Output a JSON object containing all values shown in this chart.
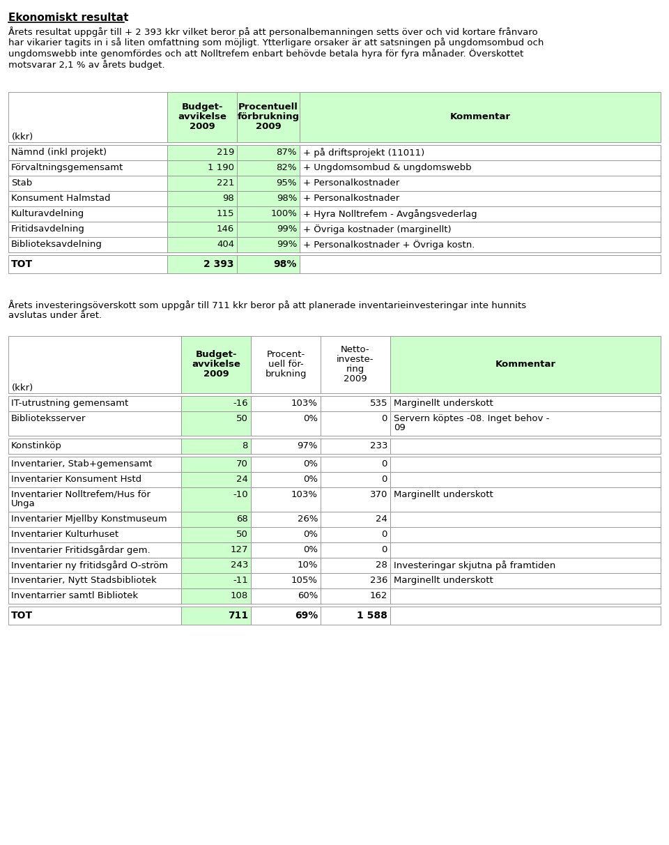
{
  "title": "Ekonomiskt resultat",
  "intro_text": "Årets resultat uppgår till + 2 393 kkr vilket beror på att personalbemanningen setts över och vid kortare frånvaro har vikarier tagits in i så liten omfattning som möjligt. Ytterligare orsaker är att satsningen på ungdomsombud och ungdomswebb inte genomfördes och att Nolltrefem enbart behövde betala hyra för fyra månader. Överskottet motsvarar 2,1 % av årets budget.",
  "intro_lines": [
    "Årets resultat uppgår till + 2 393 kkr vilket beror på att personalbemanningen setts över och vid kortare frånvaro",
    "har vikarier tagits in i så liten omfattning som möjligt. Ytterligare orsaker är att satsningen på ungdomsombud och",
    "ungdomswebb inte genomfördes och att Nolltrefem enbart behövde betala hyra för fyra månader. Överskottet",
    "motsvarar 2,1 % av årets budget."
  ],
  "invest_lines": [
    "Årets investeringsöverskott som uppgår till 711 kkr beror på att planerade inventarieinvesteringar inte hunnits",
    "avslutas under året."
  ],
  "table1_header": [
    "Budget-\navvikelse\n2009",
    "Procentuell\nförbrukning\n2009",
    "Kommentar"
  ],
  "table1_kkr": "(kkr)",
  "table1_rows": [
    [
      "Nämnd (inkl projekt)",
      "219",
      "87%",
      "+ på driftsprojekt (11011)"
    ],
    [
      "Förvaltningsgemensamt",
      "1 190",
      "82%",
      "+ Ungdomsombud & ungdomswebb"
    ],
    [
      "Stab",
      "221",
      "95%",
      "+ Personalkostnader"
    ],
    [
      "Konsument Halmstad",
      "98",
      "98%",
      "+ Personalkostnader"
    ],
    [
      "Kulturavdelning",
      "115",
      "100%",
      "+ Hyra Nolltrefem - Avgångsvederlag"
    ],
    [
      "Fritidsavdelning",
      "146",
      "99%",
      "+ Övriga kostnader (marginellt)"
    ],
    [
      "Biblioteksavdelning",
      "404",
      "99%",
      "+ Personalkostnader + Övriga kostn."
    ]
  ],
  "table1_tot": [
    "TOT",
    "2 393",
    "98%",
    ""
  ],
  "table2_header": [
    "Budget-\navvikelse\n2009",
    "Procent-\nuell för-\nbrukning",
    "Netto-\ninveste-\nring\n2009",
    "Kommentar"
  ],
  "table2_kkr": "(kkr)",
  "table2_groups": [
    [
      [
        "IT-utrustning gemensamt",
        "-16",
        "103%",
        "535",
        "Marginellt underskott",
        false
      ],
      [
        "Biblioteksserver",
        "50",
        "0%",
        "0",
        "Servern köptes -08. Inget behov -\n09",
        true
      ]
    ],
    [
      [
        "Konstinköp",
        "8",
        "97%",
        "233",
        "",
        false
      ]
    ],
    [
      [
        "Inventarier, Stab+gemensamt",
        "70",
        "0%",
        "0",
        "",
        false
      ],
      [
        "Inventarier Konsument Hstd",
        "24",
        "0%",
        "0",
        "",
        false
      ],
      [
        "Inventarier Nolltrefem/Hus för\nUnga",
        "-10",
        "103%",
        "370",
        "Marginellt underskott",
        true
      ],
      [
        "Inventarier Mjellby Konstmuseum",
        "68",
        "26%",
        "24",
        "",
        false
      ],
      [
        "Inventarier Kulturhuset",
        "50",
        "0%",
        "0",
        "",
        false
      ],
      [
        "Inventarier Fritidsgårdar gem.",
        "127",
        "0%",
        "0",
        "",
        false
      ],
      [
        "Inventarier ny fritidsgård O-ström",
        "243",
        "10%",
        "28",
        "Investeringar skjutna på framtiden",
        false
      ],
      [
        "Inventarier, Nytt Stadsbibliotek",
        "-11",
        "105%",
        "236",
        "Marginellt underskott",
        false
      ],
      [
        "Inventarrier samtl Bibliotek",
        "108",
        "60%",
        "162",
        "",
        false
      ]
    ]
  ],
  "table2_tot": [
    "TOT",
    "711",
    "69%",
    "1 588",
    ""
  ],
  "header_bg": "#ccffcc",
  "page_bg": "#ffffff",
  "border_color": "#999999"
}
